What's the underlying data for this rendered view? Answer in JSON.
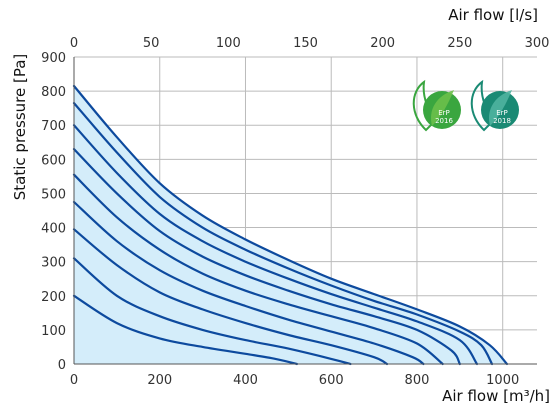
{
  "chart_data": {
    "type": "line",
    "title": "",
    "xlabel": "Air flow [m³/h]",
    "x2label": "Air flow [l/s]",
    "ylabel": "Static pressure [Pa]",
    "xlim": [
      0,
      1080
    ],
    "x2lim": [
      0,
      300
    ],
    "ylim": [
      0,
      900
    ],
    "xticks": [
      0,
      200,
      400,
      600,
      800,
      1000
    ],
    "x2ticks": [
      0,
      50,
      100,
      150,
      200,
      250,
      300
    ],
    "yticks": [
      0,
      100,
      200,
      300,
      400,
      500,
      600,
      700,
      800,
      900
    ],
    "grid": true,
    "legend": "none",
    "line_color": "#0d4a9e",
    "fill_color": "#d4edfa",
    "grid_color": "#bbbbbb",
    "series": [
      {
        "x": [
          0,
          100,
          200,
          300,
          400,
          470,
          520
        ],
        "y": [
          200,
          120,
          75,
          50,
          30,
          15,
          0
        ]
      },
      {
        "x": [
          0,
          100,
          200,
          300,
          400,
          500,
          600,
          645
        ],
        "y": [
          310,
          200,
          140,
          100,
          70,
          45,
          15,
          0
        ]
      },
      {
        "x": [
          0,
          100,
          200,
          300,
          400,
          500,
          600,
          700,
          730
        ],
        "y": [
          395,
          290,
          210,
          160,
          120,
          85,
          55,
          20,
          0
        ]
      },
      {
        "x": [
          0,
          100,
          200,
          300,
          400,
          500,
          600,
          700,
          790,
          815
        ],
        "y": [
          475,
          360,
          275,
          215,
          170,
          130,
          95,
          60,
          20,
          0
        ]
      },
      {
        "x": [
          0,
          100,
          200,
          300,
          400,
          500,
          600,
          700,
          800,
          860
        ],
        "y": [
          555,
          430,
          335,
          265,
          215,
          175,
          140,
          105,
          60,
          0
        ]
      },
      {
        "x": [
          0,
          100,
          200,
          300,
          400,
          500,
          600,
          700,
          800,
          880,
          900
        ],
        "y": [
          630,
          500,
          390,
          315,
          260,
          215,
          175,
          140,
          100,
          40,
          0
        ]
      },
      {
        "x": [
          0,
          100,
          200,
          300,
          400,
          500,
          600,
          700,
          800,
          900,
          940
        ],
        "y": [
          700,
          560,
          440,
          360,
          300,
          250,
          205,
          165,
          125,
          70,
          0
        ]
      },
      {
        "x": [
          0,
          100,
          200,
          300,
          400,
          500,
          600,
          700,
          800,
          900,
          950,
          975
        ],
        "y": [
          765,
          620,
          490,
          400,
          335,
          280,
          230,
          185,
          145,
          95,
          55,
          0
        ]
      },
      {
        "x": [
          0,
          100,
          200,
          300,
          400,
          500,
          600,
          700,
          800,
          900,
          970,
          1010
        ],
        "y": [
          815,
          665,
          530,
          435,
          365,
          305,
          250,
          205,
          160,
          110,
          55,
          0
        ]
      }
    ],
    "badges": [
      {
        "label": "ErP",
        "year": "2016",
        "color": "#3aa63f"
      },
      {
        "label": "ErP",
        "year": "2018",
        "color": "#1a8a74"
      }
    ]
  }
}
